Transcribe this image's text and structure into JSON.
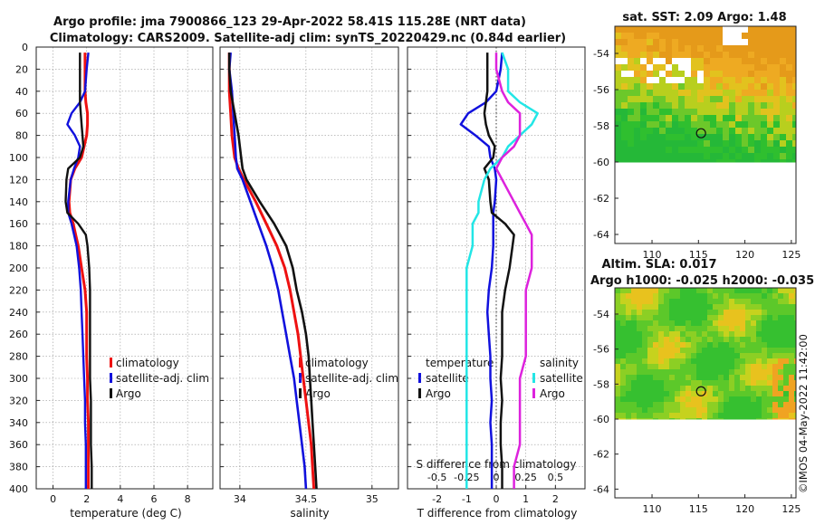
{
  "header": {
    "title1": "Argo profile: jma 7900866_123 29-Apr-2022 58.41S 115.28E (NRT data)",
    "title2": "Climatology: CARS2009. Satellite-adj clim: synTS_20220429.nc (0.84d earlier)"
  },
  "footer": {
    "credit": "©IMOS 04-May-2022 11:42:00"
  },
  "colors": {
    "climatology": "#ee1111",
    "satellite": "#1111dd",
    "argo": "#111111",
    "cyan": "#22e6e6",
    "magenta": "#dd22dd"
  },
  "chart_data": [
    {
      "type": "line",
      "id": "temperature",
      "xlabel": "temperature (deg C)",
      "xlim": [
        -1,
        9.5
      ],
      "xticks": [
        "0",
        "2",
        "4",
        "6",
        "8"
      ],
      "ylim": [
        0,
        400
      ],
      "yticks": [
        "0",
        "20",
        "40",
        "60",
        "80",
        "100",
        "120",
        "140",
        "160",
        "180",
        "200",
        "220",
        "240",
        "260",
        "280",
        "300",
        "320",
        "340",
        "360",
        "380",
        "400"
      ],
      "depth": [
        5,
        20,
        40,
        50,
        60,
        70,
        80,
        90,
        100,
        110,
        120,
        140,
        150,
        160,
        170,
        180,
        200,
        220,
        240,
        260,
        280,
        300,
        320,
        340,
        360,
        380,
        400
      ],
      "series": [
        {
          "name": "climatology",
          "values": [
            1.9,
            1.9,
            1.9,
            1.95,
            2.05,
            2.05,
            2.0,
            1.85,
            1.7,
            1.3,
            1.05,
            0.95,
            1.0,
            1.2,
            1.35,
            1.5,
            1.7,
            1.9,
            2.0,
            2.0,
            2.0,
            2.05,
            2.05,
            2.1,
            2.1,
            2.1,
            2.1
          ]
        },
        {
          "name": "satellite-adj. clim",
          "values": [
            2.1,
            2.0,
            1.9,
            1.6,
            1.1,
            0.85,
            1.3,
            1.6,
            1.5,
            1.25,
            1.05,
            0.9,
            0.9,
            1.1,
            1.25,
            1.4,
            1.55,
            1.65,
            1.7,
            1.75,
            1.8,
            1.85,
            1.9,
            1.9,
            1.95,
            1.95,
            1.95
          ]
        },
        {
          "name": "Argo",
          "values": [
            1.6,
            1.6,
            1.6,
            1.6,
            1.65,
            1.7,
            1.75,
            1.8,
            1.6,
            0.9,
            0.8,
            0.75,
            0.85,
            1.5,
            1.95,
            2.05,
            2.15,
            2.2,
            2.2,
            2.2,
            2.2,
            2.2,
            2.25,
            2.25,
            2.25,
            2.3,
            2.3
          ]
        }
      ],
      "legend": [
        "climatology",
        "satellite-adj. clim",
        "Argo"
      ]
    },
    {
      "type": "line",
      "id": "salinity",
      "xlabel": "salinity",
      "xlim": [
        33.85,
        35.2
      ],
      "xticks": [
        "34",
        "34.5",
        "35"
      ],
      "depth": [
        5,
        20,
        40,
        60,
        80,
        100,
        110,
        120,
        140,
        160,
        180,
        200,
        220,
        240,
        260,
        280,
        300,
        320,
        340,
        360,
        380,
        400
      ],
      "series": [
        {
          "name": "climatology",
          "values": [
            33.92,
            33.92,
            33.92,
            33.93,
            33.94,
            33.96,
            33.99,
            34.03,
            34.12,
            34.2,
            34.28,
            34.34,
            34.38,
            34.41,
            34.44,
            34.46,
            34.48,
            34.5,
            34.52,
            34.54,
            34.55,
            34.56
          ]
        },
        {
          "name": "satellite-adj. clim",
          "values": [
            33.93,
            33.92,
            33.94,
            33.95,
            33.96,
            33.97,
            33.98,
            34.02,
            34.08,
            34.14,
            34.2,
            34.25,
            34.29,
            34.32,
            34.35,
            34.38,
            34.41,
            34.43,
            34.45,
            34.47,
            34.49,
            34.5
          ]
        },
        {
          "name": "Argo",
          "values": [
            33.92,
            33.92,
            33.93,
            33.96,
            33.99,
            34.01,
            34.02,
            34.05,
            34.15,
            34.26,
            34.35,
            34.4,
            34.43,
            34.47,
            34.5,
            34.52,
            34.53,
            34.54,
            34.55,
            34.56,
            34.57,
            34.58
          ]
        }
      ],
      "legend": [
        "climatology",
        "satellite-adj. clim",
        "Argo"
      ]
    },
    {
      "type": "line",
      "id": "differences",
      "xlabel": "T difference from climatology",
      "xlim": [
        -3,
        3
      ],
      "xticks": [
        "-2",
        "-1",
        "0",
        "1",
        "2"
      ],
      "top_axis_label": "S difference from climatology",
      "top_xticks": [
        "-0.5",
        "-0.25",
        "0",
        "0.25",
        "0.5"
      ],
      "depth": [
        5,
        20,
        40,
        50,
        60,
        70,
        80,
        90,
        100,
        110,
        120,
        140,
        150,
        160,
        170,
        180,
        200,
        220,
        240,
        260,
        280,
        300,
        320,
        340,
        360,
        380,
        400
      ],
      "series": [
        {
          "name": "temperature satellite",
          "values": [
            0.2,
            0.15,
            0.0,
            -0.35,
            -0.95,
            -1.2,
            -0.7,
            -0.25,
            -0.2,
            -0.05,
            0.0,
            -0.05,
            -0.1,
            -0.1,
            -0.1,
            -0.1,
            -0.15,
            -0.25,
            -0.3,
            -0.25,
            -0.2,
            -0.2,
            -0.15,
            -0.2,
            -0.15,
            -0.15,
            -0.15
          ]
        },
        {
          "name": "temperature Argo",
          "values": [
            -0.3,
            -0.3,
            -0.3,
            -0.35,
            -0.4,
            -0.35,
            -0.25,
            -0.05,
            -0.1,
            -0.4,
            -0.25,
            -0.2,
            -0.15,
            0.3,
            0.6,
            0.55,
            0.45,
            0.3,
            0.2,
            0.2,
            0.2,
            0.15,
            0.2,
            0.15,
            0.15,
            0.2,
            0.2
          ]
        },
        {
          "name": "salinity satellite",
          "values": [
            0.05,
            0.1,
            0.1,
            0.2,
            0.35,
            0.3,
            0.2,
            0.1,
            0.05,
            -0.05,
            -0.1,
            -0.15,
            -0.15,
            -0.2,
            -0.2,
            -0.2,
            -0.25,
            -0.25,
            -0.25,
            -0.25,
            -0.25,
            -0.25,
            -0.25,
            -0.25,
            -0.25,
            -0.25,
            -0.25
          ]
        },
        {
          "name": "salinity Argo",
          "values": [
            0.0,
            0.0,
            0.05,
            0.1,
            0.2,
            0.2,
            0.2,
            0.15,
            0.05,
            0.0,
            0.05,
            0.15,
            0.2,
            0.25,
            0.3,
            0.3,
            0.3,
            0.25,
            0.25,
            0.25,
            0.25,
            0.2,
            0.2,
            0.2,
            0.2,
            0.15,
            0.15
          ]
        }
      ],
      "legend_left": {
        "title": "temperature",
        "items": [
          "satellite",
          "Argo"
        ]
      },
      "legend_right": {
        "title": "salinity",
        "items": [
          "satellite",
          "Argo"
        ]
      }
    },
    {
      "type": "heatmap",
      "id": "sst-map",
      "title": "sat. SST: 2.09 Argo: 1.48",
      "xticks": [
        "110",
        "115",
        "120",
        "125"
      ],
      "yticks": [
        "-54",
        "-56",
        "-58",
        "-60",
        "-62",
        "-64"
      ],
      "lon_range": [
        106,
        125.5
      ],
      "lat_range": [
        -64.5,
        -52.5
      ],
      "data_lat_bottom": -60,
      "marker": {
        "lon": 115.28,
        "lat": -58.41
      }
    },
    {
      "type": "heatmap",
      "id": "sla-map",
      "title1": "Altim. SLA: 0.017",
      "title2": "Argo h1000: -0.025 h2000: -0.035",
      "xticks": [
        "110",
        "115",
        "120",
        "125"
      ],
      "yticks": [
        "-54",
        "-56",
        "-58",
        "-60",
        "-62",
        "-64"
      ],
      "lon_range": [
        106,
        125.5
      ],
      "lat_range": [
        -64.5,
        -52.5
      ],
      "data_lat_bottom": -60,
      "marker": {
        "lon": 115.28,
        "lat": -58.41
      }
    }
  ]
}
